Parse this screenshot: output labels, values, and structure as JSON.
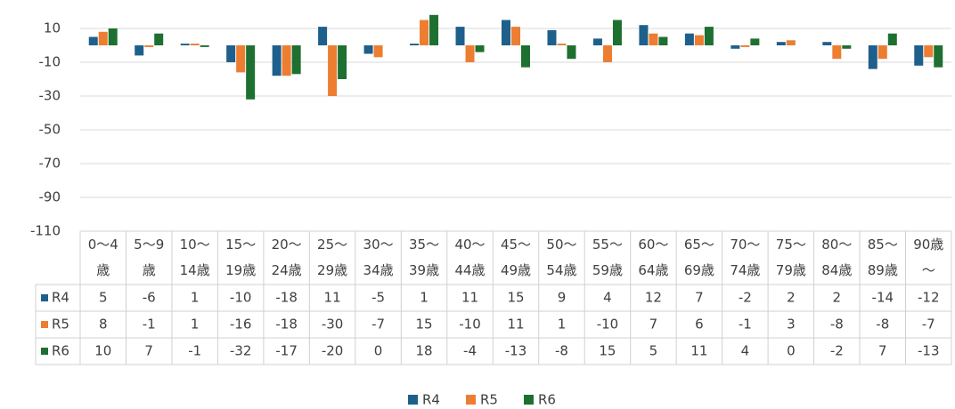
{
  "chart_data": {
    "type": "bar",
    "categories": [
      "0～4歳",
      "5～9歳",
      "10～14歳",
      "15～19歳",
      "20～24歳",
      "25～29歳",
      "30～34歳",
      "35～39歳",
      "40～44歳",
      "45～49歳",
      "50～54歳",
      "55～59歳",
      "60～64歳",
      "65～69歳",
      "70～74歳",
      "75～79歳",
      "80～84歳",
      "85～89歳",
      "90歳～"
    ],
    "series": [
      {
        "name": "R4",
        "color": "#1f5f8b",
        "values": [
          5,
          -6,
          1,
          -10,
          -18,
          11,
          -5,
          1,
          11,
          15,
          9,
          4,
          12,
          7,
          -2,
          2,
          2,
          -14,
          -12
        ]
      },
      {
        "name": "R5",
        "color": "#ed7d31",
        "values": [
          8,
          -1,
          1,
          -16,
          -18,
          -30,
          -7,
          15,
          -10,
          11,
          1,
          -10,
          7,
          6,
          -1,
          3,
          -8,
          -8,
          -7
        ]
      },
      {
        "name": "R6",
        "color": "#1e7031",
        "values": [
          10,
          7,
          -1,
          -32,
          -17,
          -20,
          0,
          18,
          -4,
          -13,
          -8,
          15,
          5,
          11,
          4,
          0,
          -2,
          7,
          -13
        ]
      }
    ],
    "ylim": [
      -110,
      30
    ],
    "yticks": [
      -110,
      -90,
      -70,
      -50,
      -30,
      -10,
      10,
      30
    ],
    "grid": true,
    "legend": "bottom"
  }
}
